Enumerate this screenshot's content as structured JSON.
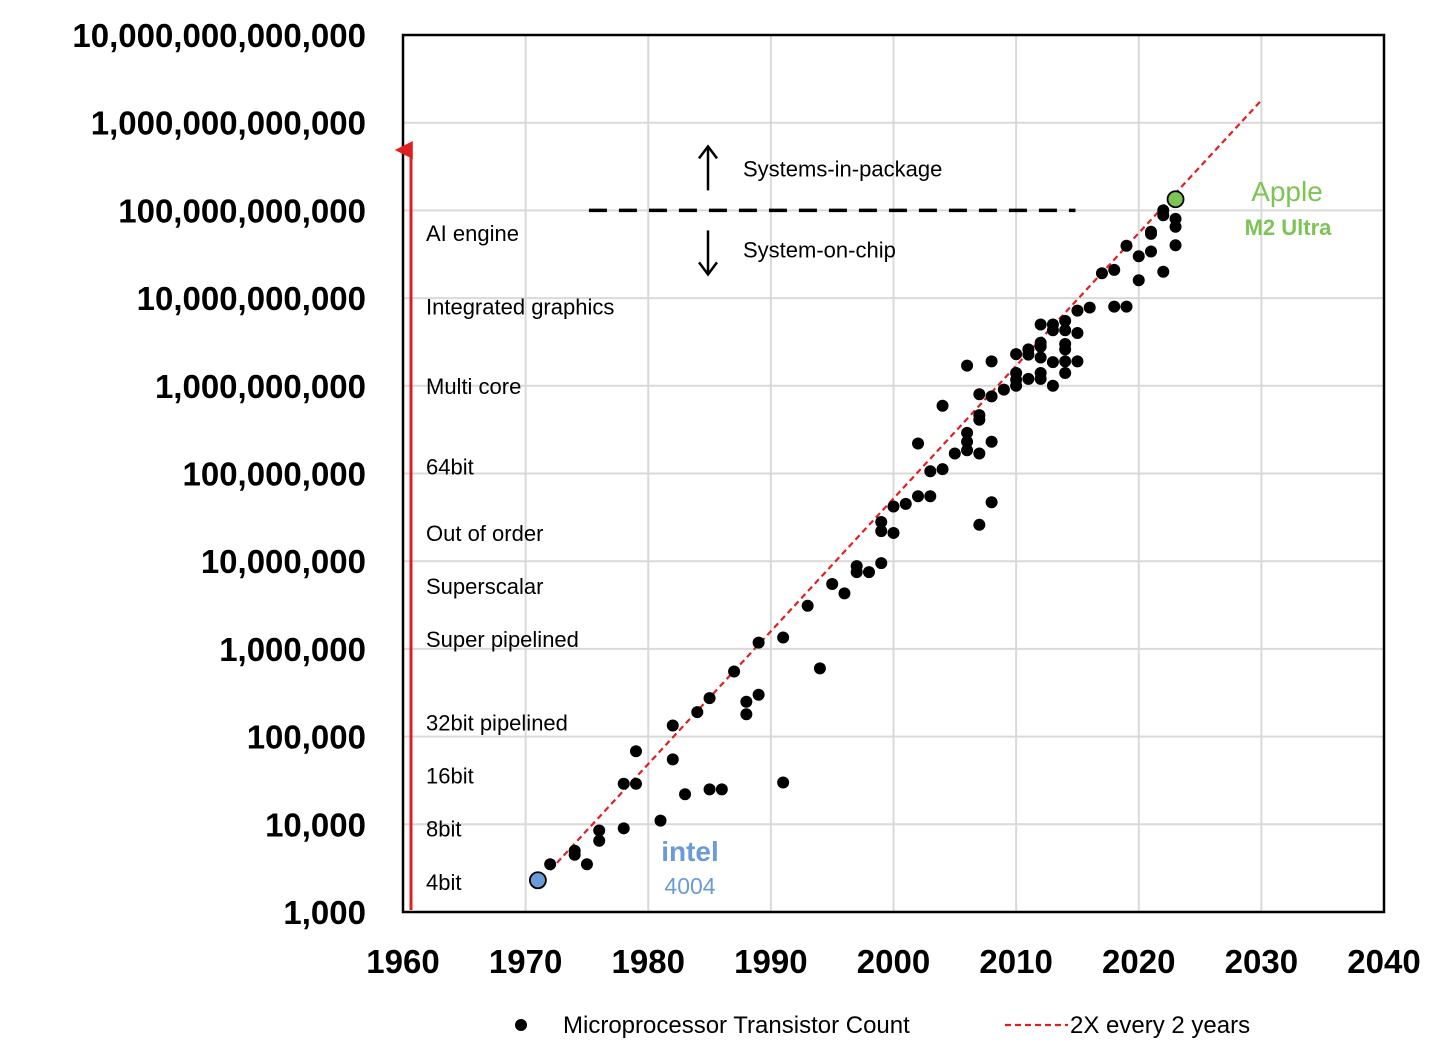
{
  "chart_data": {
    "type": "scatter",
    "x_axis": {
      "range": [
        1960,
        2040
      ],
      "ticks": [
        1960,
        1970,
        1980,
        1990,
        2000,
        2010,
        2020,
        2030,
        2040
      ]
    },
    "y_axis": {
      "scale": "log",
      "range": [
        1000,
        10000000000000
      ],
      "ticks": [
        1000,
        10000,
        100000,
        1000000,
        10000000,
        100000000,
        1000000000,
        10000000000,
        100000000000,
        1000000000000,
        10000000000000
      ],
      "tick_labels": [
        "1,000",
        "10,000",
        "100,000",
        "1,000,000",
        "10,000,000",
        "100,000,000",
        "1,000,000,000",
        "10,000,000,000",
        "100,000,000,000",
        "1,000,000,000,000",
        "10,000,000,000,000"
      ]
    },
    "grid": true,
    "legend": {
      "placement": "bottom",
      "entries": [
        {
          "label": "Microprocessor Transistor Count",
          "marker": "dot",
          "color": "#000000"
        },
        {
          "label": "2X every 2 years",
          "marker": "dashed-line",
          "color": "#e02020"
        }
      ]
    },
    "series": [
      {
        "name": "Microprocessor Transistor Count",
        "color": "#000000",
        "points": [
          [
            1972,
            3500
          ],
          [
            1974,
            4500
          ],
          [
            1974,
            5000
          ],
          [
            1975,
            3500
          ],
          [
            1976,
            6500
          ],
          [
            1976,
            8500
          ],
          [
            1978,
            9000
          ],
          [
            1978,
            29000
          ],
          [
            1979,
            29000
          ],
          [
            1979,
            68000
          ],
          [
            1981,
            11000
          ],
          [
            1982,
            55000
          ],
          [
            1982,
            134000
          ],
          [
            1983,
            22000
          ],
          [
            1984,
            190000
          ],
          [
            1985,
            25000
          ],
          [
            1985,
            275000
          ],
          [
            1986,
            25000
          ],
          [
            1987,
            553000
          ],
          [
            1988,
            250000
          ],
          [
            1988,
            180000
          ],
          [
            1989,
            1180000
          ],
          [
            1989,
            300000
          ],
          [
            1991,
            1350000
          ],
          [
            1991,
            30000
          ],
          [
            1993,
            3100000
          ],
          [
            1994,
            600000
          ],
          [
            1995,
            5500000
          ],
          [
            1996,
            4300000
          ],
          [
            1997,
            7500000
          ],
          [
            1997,
            8800000
          ],
          [
            1998,
            7500000
          ],
          [
            1999,
            9500000
          ],
          [
            1999,
            22000000
          ],
          [
            1999,
            28000000
          ],
          [
            2000,
            42000000
          ],
          [
            2000,
            21000000
          ],
          [
            2001,
            45000000
          ],
          [
            2002,
            55000000
          ],
          [
            2002,
            220000000
          ],
          [
            2003,
            55000000
          ],
          [
            2003,
            106000000
          ],
          [
            2004,
            112000000
          ],
          [
            2004,
            592000000
          ],
          [
            2005,
            169000000
          ],
          [
            2006,
            184000000
          ],
          [
            2006,
            230000000
          ],
          [
            2006,
            291000000
          ],
          [
            2006,
            1700000000
          ],
          [
            2007,
            169000000
          ],
          [
            2007,
            410000000
          ],
          [
            2007,
            463000000
          ],
          [
            2007,
            800000000
          ],
          [
            2007,
            26000000
          ],
          [
            2008,
            47000000
          ],
          [
            2008,
            230000000
          ],
          [
            2008,
            758000000
          ],
          [
            2008,
            1900000000
          ],
          [
            2009,
            904000000
          ],
          [
            2010,
            1000000000
          ],
          [
            2010,
            1170000000
          ],
          [
            2010,
            1400000000
          ],
          [
            2010,
            2300000000
          ],
          [
            2011,
            1200000000
          ],
          [
            2011,
            2270000000
          ],
          [
            2011,
            2600000000
          ],
          [
            2012,
            1200000000
          ],
          [
            2012,
            1400000000
          ],
          [
            2012,
            2100000000
          ],
          [
            2012,
            2800000000
          ],
          [
            2012,
            3100000000
          ],
          [
            2012,
            5000000000
          ],
          [
            2013,
            1000000000
          ],
          [
            2013,
            1860000000
          ],
          [
            2013,
            4300000000
          ],
          [
            2013,
            5000000000
          ],
          [
            2014,
            1400000000
          ],
          [
            2014,
            1900000000
          ],
          [
            2014,
            2600000000
          ],
          [
            2014,
            3000000000
          ],
          [
            2014,
            4300000000
          ],
          [
            2014,
            5500000000
          ],
          [
            2015,
            1900000000
          ],
          [
            2015,
            4000000000
          ],
          [
            2015,
            7200000000
          ],
          [
            2016,
            7800000000
          ],
          [
            2017,
            19200000000
          ],
          [
            2018,
            8000000000
          ],
          [
            2018,
            21000000000
          ],
          [
            2019,
            8000000000
          ],
          [
            2019,
            39500000000
          ],
          [
            2020,
            16000000000
          ],
          [
            2020,
            30000000000
          ],
          [
            2021,
            34000000000
          ],
          [
            2021,
            54000000000
          ],
          [
            2021,
            57000000000
          ],
          [
            2022,
            20000000000
          ],
          [
            2022,
            88000000000
          ],
          [
            2022,
            100000000000
          ],
          [
            2023,
            80000000000
          ],
          [
            2023,
            65000000000
          ],
          [
            2023,
            40000000000
          ]
        ]
      },
      {
        "name": "2X every 2 years",
        "color": "#e02020",
        "line": [
          [
            1972,
            3000
          ],
          [
            2030,
            1800000000000
          ]
        ]
      }
    ],
    "highlight_points": [
      {
        "name": "intel 4004",
        "x": 1971,
        "y": 2300,
        "color": "#6a9bd8",
        "label_line1": "intel",
        "label_line2": "4004"
      },
      {
        "name": "Apple M2 Ultra",
        "x": 2023,
        "y": 134000000000,
        "color": "#7cc453",
        "label_line1": "Apple",
        "label_line2": "M2 Ultra"
      }
    ],
    "annotations": {
      "features": [
        {
          "label": "4bit",
          "y": 2200
        },
        {
          "label": "8bit",
          "y": 9000
        },
        {
          "label": "16bit",
          "y": 36000
        },
        {
          "label": "32bit pipelined",
          "y": 145000
        },
        {
          "label": "Super pipelined",
          "y": 1300000
        },
        {
          "label": "Superscalar",
          "y": 5200000
        },
        {
          "label": "Out of order",
          "y": 21000000
        },
        {
          "label": "64bit",
          "y": 120000000
        },
        {
          "label": "Multi core",
          "y": 1000000000
        },
        {
          "label": "Integrated graphics",
          "y": 8000000000
        },
        {
          "label": "AI engine",
          "y": 55000000000
        }
      ],
      "package_threshold": {
        "y": 100000000000,
        "x_range": [
          1975,
          2015
        ],
        "above_label": "Systems-in-package",
        "below_label": "System-on-chip"
      },
      "arrow_color": "#e02020"
    }
  }
}
